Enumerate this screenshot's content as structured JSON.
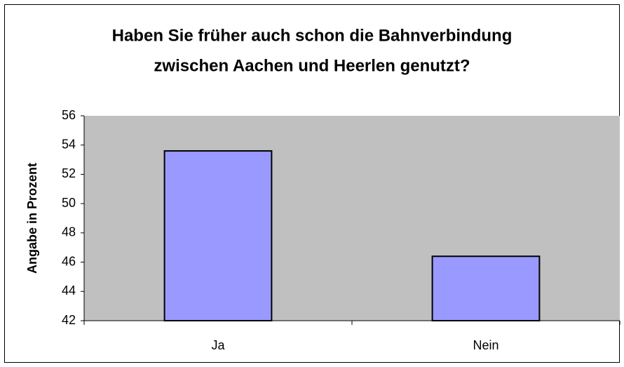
{
  "chart_data": {
    "type": "bar",
    "title": [
      "Haben Sie früher auch schon die Bahnverbindung",
      "zwischen Aachen und Heerlen genutzt?"
    ],
    "y_label": "Angabe in Prozent",
    "categories": [
      "Ja",
      "Nein"
    ],
    "values": [
      53.6,
      46.4
    ],
    "color": "#9999ff",
    "ylim": [
      42,
      56
    ],
    "yticks": [
      42,
      44,
      46,
      48,
      50,
      52,
      54,
      56
    ],
    "grid": false
  }
}
